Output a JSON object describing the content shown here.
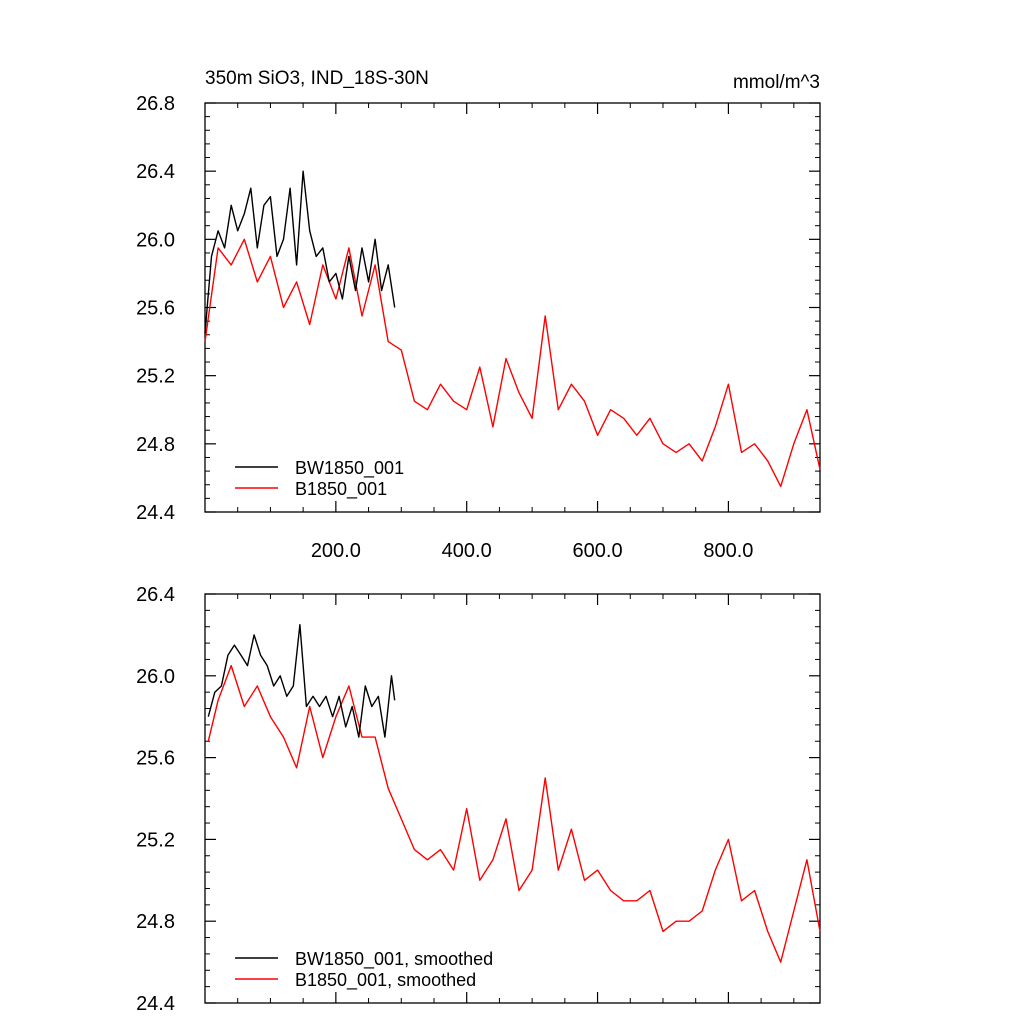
{
  "chart_data": [
    {
      "type": "line",
      "title": "350m SiO3, IND_18S-30N",
      "units": "mmol/m^3",
      "xlabel": "",
      "ylabel": "",
      "xlim": [
        0,
        940
      ],
      "ylim": [
        24.4,
        26.8
      ],
      "x_ticks": [
        200,
        400,
        600,
        800
      ],
      "x_tick_labels": [
        "200.0",
        "400.0",
        "600.0",
        "800.0"
      ],
      "y_ticks": [
        24.4,
        24.8,
        25.2,
        25.6,
        26.0,
        26.4,
        26.8
      ],
      "y_tick_labels": [
        "24.4",
        "24.8",
        "25.2",
        "25.6",
        "26.0",
        "26.4",
        "26.8"
      ],
      "legend_position": "bottom-left",
      "series": [
        {
          "name": "BW1850_001",
          "color": "#000000",
          "x": [
            0,
            10,
            20,
            30,
            40,
            50,
            60,
            70,
            80,
            90,
            100,
            110,
            120,
            130,
            140,
            150,
            160,
            170,
            180,
            190,
            200,
            210,
            220,
            230,
            240,
            250,
            260,
            270,
            280,
            290
          ],
          "values": [
            25.45,
            25.9,
            26.05,
            25.95,
            26.2,
            26.05,
            26.15,
            26.3,
            25.95,
            26.2,
            26.25,
            25.9,
            26.0,
            26.3,
            25.85,
            26.4,
            26.05,
            25.9,
            25.95,
            25.75,
            25.8,
            25.65,
            25.9,
            25.7,
            25.95,
            25.75,
            26.0,
            25.7,
            25.85,
            25.6
          ]
        },
        {
          "name": "B1850_001",
          "color": "#ff0000",
          "x": [
            0,
            20,
            40,
            60,
            80,
            100,
            120,
            140,
            160,
            180,
            200,
            220,
            240,
            260,
            280,
            300,
            320,
            340,
            360,
            380,
            400,
            420,
            440,
            460,
            480,
            500,
            520,
            540,
            560,
            580,
            600,
            620,
            640,
            660,
            680,
            700,
            720,
            740,
            760,
            780,
            800,
            820,
            840,
            860,
            880,
            900,
            920,
            940
          ],
          "values": [
            25.4,
            25.95,
            25.85,
            26.0,
            25.75,
            25.9,
            25.6,
            25.75,
            25.5,
            25.85,
            25.65,
            25.95,
            25.55,
            25.85,
            25.4,
            25.35,
            25.05,
            25.0,
            25.15,
            25.05,
            25.0,
            25.25,
            24.9,
            25.3,
            25.1,
            24.95,
            25.55,
            25.0,
            25.15,
            25.05,
            24.85,
            25.0,
            24.95,
            24.85,
            24.95,
            24.8,
            24.75,
            24.8,
            24.7,
            24.9,
            25.15,
            24.75,
            24.8,
            24.7,
            24.55,
            24.8,
            25.0,
            24.65
          ]
        }
      ]
    },
    {
      "type": "line",
      "title": "",
      "xlabel": "",
      "ylabel": "",
      "xlim": [
        0,
        940
      ],
      "ylim": [
        24.4,
        26.4
      ],
      "x_ticks": [
        200,
        400,
        600,
        800
      ],
      "x_tick_labels": [],
      "y_ticks": [
        24.4,
        24.8,
        25.2,
        25.6,
        26.0,
        26.4
      ],
      "y_tick_labels": [
        "24.4",
        "24.8",
        "25.2",
        "25.6",
        "26.0",
        "26.4"
      ],
      "legend_position": "bottom-left",
      "series": [
        {
          "name": "BW1850_001, smoothed",
          "color": "#000000",
          "x": [
            5,
            15,
            25,
            35,
            45,
            55,
            65,
            75,
            85,
            95,
            105,
            115,
            125,
            135,
            145,
            155,
            165,
            175,
            185,
            195,
            205,
            215,
            225,
            235,
            245,
            255,
            265,
            275,
            285,
            290
          ],
          "values": [
            25.8,
            25.92,
            25.95,
            26.1,
            26.15,
            26.1,
            26.05,
            26.2,
            26.1,
            26.05,
            25.95,
            26.0,
            25.9,
            25.95,
            26.25,
            25.85,
            25.9,
            25.85,
            25.9,
            25.8,
            25.9,
            25.75,
            25.85,
            25.7,
            25.95,
            25.85,
            25.9,
            25.7,
            26.0,
            25.88
          ]
        },
        {
          "name": "B1850_001, smoothed",
          "color": "#ff0000",
          "x": [
            5,
            20,
            40,
            60,
            80,
            100,
            120,
            140,
            160,
            180,
            200,
            220,
            240,
            260,
            280,
            300,
            320,
            340,
            360,
            380,
            400,
            420,
            440,
            460,
            480,
            500,
            520,
            540,
            560,
            580,
            600,
            620,
            640,
            660,
            680,
            700,
            720,
            740,
            760,
            780,
            800,
            820,
            840,
            860,
            880,
            900,
            920,
            940
          ],
          "values": [
            25.68,
            25.88,
            26.05,
            25.85,
            25.95,
            25.8,
            25.7,
            25.55,
            25.85,
            25.6,
            25.8,
            25.95,
            25.7,
            25.7,
            25.45,
            25.3,
            25.15,
            25.1,
            25.15,
            25.05,
            25.35,
            25.0,
            25.1,
            25.3,
            24.95,
            25.05,
            25.5,
            25.05,
            25.25,
            25.0,
            25.05,
            24.95,
            24.9,
            24.9,
            24.95,
            24.75,
            24.8,
            24.8,
            24.85,
            25.05,
            25.2,
            24.9,
            24.95,
            24.75,
            24.6,
            24.85,
            25.1,
            24.75
          ]
        }
      ]
    }
  ]
}
